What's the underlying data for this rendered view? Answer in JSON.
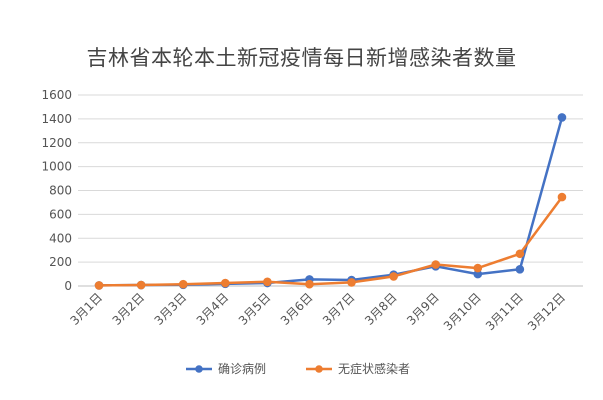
{
  "chart_data": {
    "type": "line",
    "title": "吉林省本轮本土新冠疫情每日新增感染者数量",
    "categories": [
      "3月1日",
      "3月2日",
      "3月3日",
      "3月4日",
      "3月5日",
      "3月6日",
      "3月7日",
      "3月8日",
      "3月9日",
      "3月10日",
      "3月11日",
      "3月12日"
    ],
    "ylim": [
      0,
      1600
    ],
    "yticks": [
      0,
      200,
      400,
      600,
      800,
      1000,
      1200,
      1400,
      1600
    ],
    "grid": true,
    "legend_position": "bottom",
    "series": [
      {
        "name": "确诊病例",
        "color": "#4472C4",
        "values": [
          5,
          8,
          10,
          18,
          25,
          55,
          50,
          95,
          165,
          100,
          140,
          1412
        ]
      },
      {
        "name": "无症状感染者",
        "color": "#ED7D31",
        "values": [
          5,
          8,
          15,
          25,
          35,
          15,
          30,
          80,
          180,
          150,
          270,
          745
        ]
      }
    ]
  }
}
